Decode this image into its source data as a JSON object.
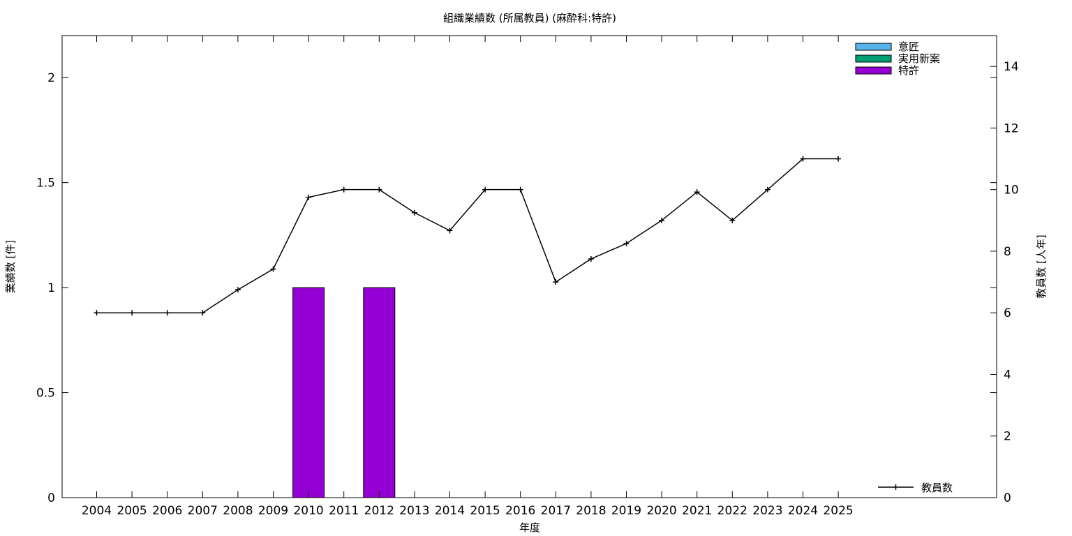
{
  "chart_data": {
    "type": "bar",
    "title": "組織業績数 (所属教員) (麻酔科:特許)",
    "xlabel": "年度",
    "ylabel": "業績数 [件]",
    "y2label": "教員数 [人年]",
    "categories": [
      "2004",
      "2005",
      "2006",
      "2007",
      "2008",
      "2009",
      "2010",
      "2011",
      "2012",
      "2013",
      "2014",
      "2015",
      "2016",
      "2017",
      "2018",
      "2019",
      "2020",
      "2021",
      "2022",
      "2023",
      "2024",
      "2025"
    ],
    "ylim": [
      0,
      2.2
    ],
    "y2lim": [
      0,
      15
    ],
    "yticks": [
      "0",
      "0.5",
      "1",
      "1.5",
      "2"
    ],
    "y2ticks": [
      "0",
      "2",
      "4",
      "6",
      "8",
      "10",
      "12",
      "14"
    ],
    "grid": false,
    "series": [
      {
        "name": "意匠",
        "kind": "bar",
        "color": "#56b4e9",
        "values": [
          0,
          0,
          0,
          0,
          0,
          0,
          0,
          0,
          0,
          0,
          0,
          0,
          0,
          0,
          0,
          0,
          0,
          0,
          0,
          0,
          0,
          0
        ]
      },
      {
        "name": "実用新案",
        "kind": "bar",
        "color": "#009e73",
        "values": [
          0,
          0,
          0,
          0,
          0,
          0,
          0,
          0,
          0,
          0,
          0,
          0,
          0,
          0,
          0,
          0,
          0,
          0,
          0,
          0,
          0,
          0
        ]
      },
      {
        "name": "特許",
        "kind": "bar",
        "color": "#9400d3",
        "values": [
          0,
          0,
          0,
          0,
          0,
          0,
          1,
          0,
          1,
          0,
          0,
          0,
          0,
          0,
          0,
          0,
          0,
          0,
          0,
          0,
          0,
          0
        ]
      },
      {
        "name": "教員数",
        "kind": "line",
        "axis": "y2",
        "color": "#000000",
        "values": [
          6,
          6,
          6,
          6,
          6.75,
          7.42,
          9.75,
          10,
          10,
          9.25,
          8.67,
          10,
          10,
          7,
          7.75,
          8.25,
          9,
          9.92,
          9,
          10,
          11,
          11
        ]
      }
    ],
    "legend_bars_placement": "top-right",
    "legend_line_placement": "bottom-right"
  }
}
